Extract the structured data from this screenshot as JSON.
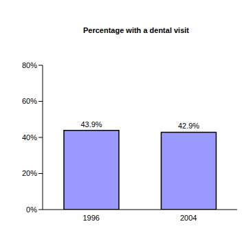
{
  "chart_data": {
    "type": "bar",
    "title": "Percentage with a dental visit",
    "categories": [
      "1996",
      "2004"
    ],
    "values": [
      43.9,
      42.9
    ],
    "value_labels": [
      "43.9%",
      "42.9%"
    ],
    "data_labels": true,
    "color": "#9999ff",
    "ylim": [
      0,
      80
    ],
    "yticks": [
      {
        "value": 0,
        "label": "0%"
      },
      {
        "value": 20,
        "label": "20%"
      },
      {
        "value": 40,
        "label": "40%"
      },
      {
        "value": 60,
        "label": "60%"
      },
      {
        "value": 80,
        "label": "80%"
      }
    ],
    "grid": false
  }
}
